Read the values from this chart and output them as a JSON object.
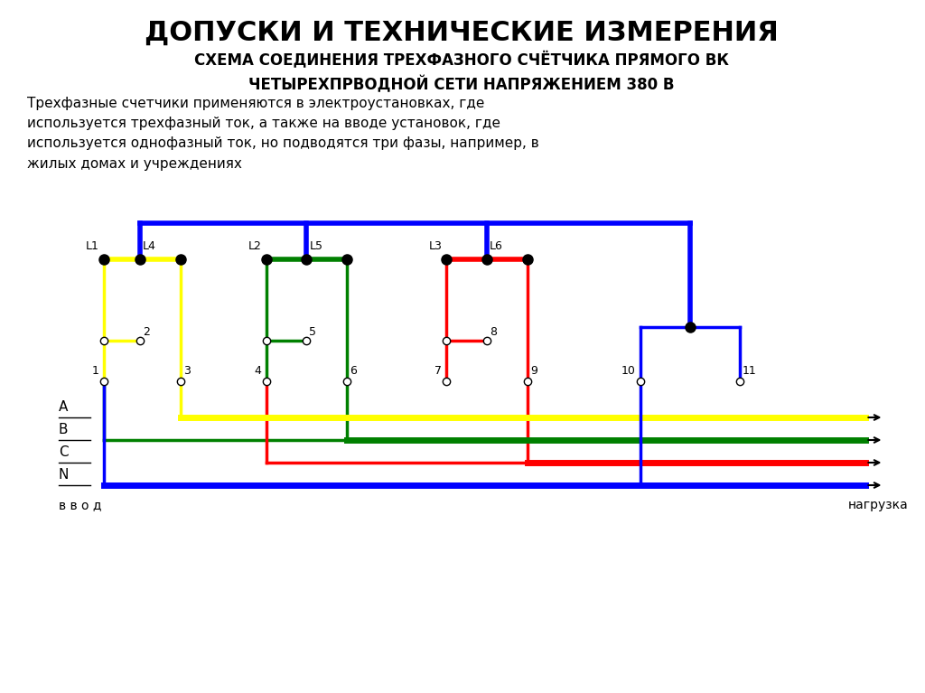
{
  "title": "ДОПУСКИ И ТЕХНИЧЕСКИЕ ИЗМЕРЕНИЯ",
  "subtitle": "СХЕМА СОЕДИНЕНИЯ ТРЕХФАЗНОГО СЧЁТЧИКА ПРЯМОГО ВК\nЧЕТЫРЕХПРВОДНОЙ СЕТИ НАПРЯЖЕНИЕМ 380 В",
  "body_text": "Трехфазные счетчики применяются в электроустановках, где\nиспользуется трехфазный ток, а также на вводе установок, где\nиспользуется однофазный ток, но подводятся три фазы, например, в\nжилых домах и учреждениях",
  "colors": {
    "yellow": "#FFFF00",
    "green": "#008000",
    "red": "#FF0000",
    "blue": "#0000FF",
    "black": "#000000",
    "white": "#FFFFFF"
  },
  "background": "#FFFFFF"
}
